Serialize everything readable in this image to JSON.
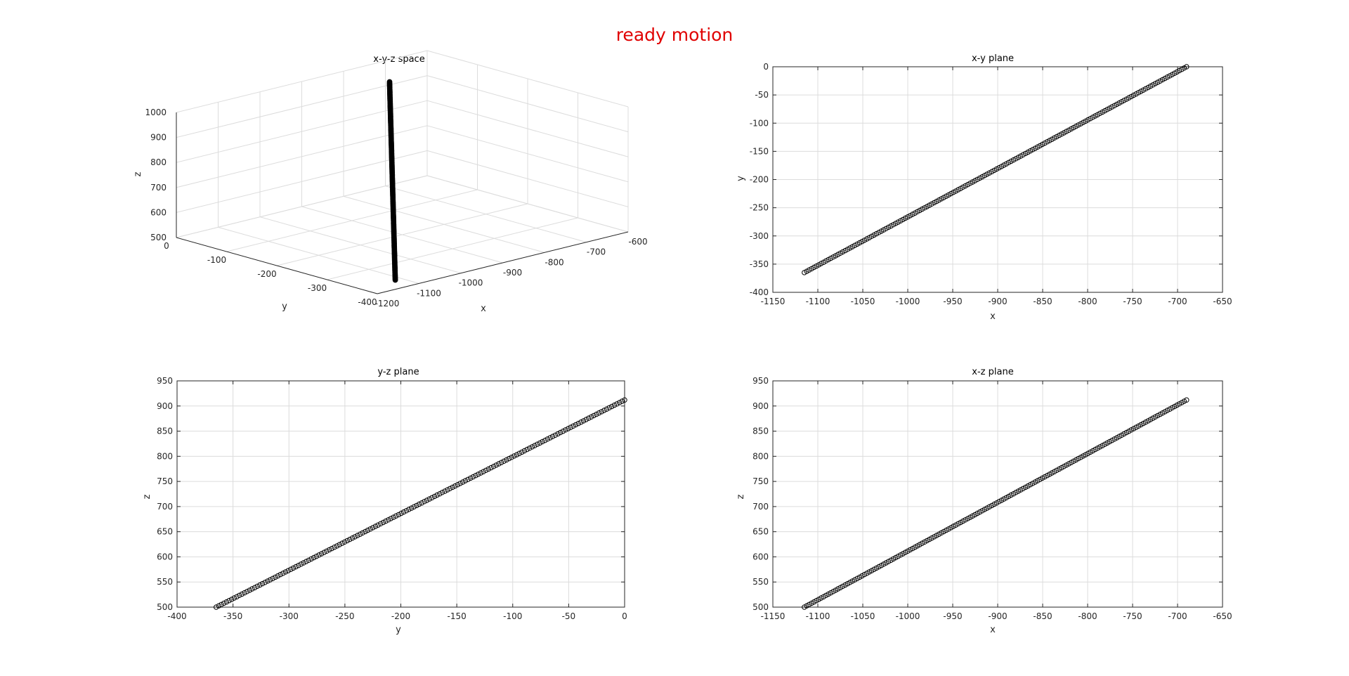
{
  "figure": {
    "suptitle": "ready motion",
    "suptitle_color": "#e00000",
    "line_color": "#000000"
  },
  "chart_data": [
    {
      "type": "scatter",
      "subtype": "3d",
      "title": "x-y-z space",
      "xlabel": "x",
      "ylabel": "y",
      "zlabel": "z",
      "xlim": [
        -1200,
        -600
      ],
      "ylim": [
        -400,
        0
      ],
      "zlim": [
        500,
        1000
      ],
      "xticks": [
        "-1200",
        "-1100",
        "-1000",
        "-900",
        "-800",
        "-700",
        "-600"
      ],
      "yticks": [
        "0",
        "-100",
        "-200",
        "-300",
        "-400"
      ],
      "zticks": [
        "500",
        "600",
        "700",
        "800",
        "900",
        "1000"
      ],
      "grid": true,
      "series": [
        {
          "x": [
            -1115,
            -690
          ],
          "y": [
            -365,
            0
          ],
          "z": [
            500,
            912
          ]
        }
      ]
    },
    {
      "type": "scatter",
      "title": "x-y plane",
      "xlabel": "x",
      "ylabel": "y",
      "xlim": [
        -1150,
        -650
      ],
      "ylim": [
        -400,
        0
      ],
      "xticks": [
        "-1150",
        "-1100",
        "-1050",
        "-1000",
        "-950",
        "-900",
        "-850",
        "-800",
        "-750",
        "-700",
        "-650"
      ],
      "yticks": [
        "0",
        "-50",
        "-100",
        "-150",
        "-200",
        "-250",
        "-300",
        "-350",
        "-400"
      ],
      "grid": true,
      "series": [
        {
          "x": [
            -1115,
            -690
          ],
          "y": [
            -365,
            0
          ]
        }
      ]
    },
    {
      "type": "scatter",
      "title": "y-z plane",
      "xlabel": "y",
      "ylabel": "z",
      "xlim": [
        -400,
        0
      ],
      "ylim": [
        500,
        950
      ],
      "xticks": [
        "-400",
        "-350",
        "-300",
        "-250",
        "-200",
        "-150",
        "-100",
        "-50",
        "0"
      ],
      "yticks": [
        "950",
        "900",
        "850",
        "800",
        "750",
        "700",
        "650",
        "600",
        "550",
        "500"
      ],
      "grid": true,
      "series": [
        {
          "x": [
            -365,
            0
          ],
          "y": [
            500,
            912
          ]
        }
      ]
    },
    {
      "type": "scatter",
      "title": "x-z plane",
      "xlabel": "x",
      "ylabel": "z",
      "xlim": [
        -1150,
        -650
      ],
      "ylim": [
        500,
        950
      ],
      "xticks": [
        "-1150",
        "-1100",
        "-1050",
        "-1000",
        "-950",
        "-900",
        "-850",
        "-800",
        "-750",
        "-700",
        "-650"
      ],
      "yticks": [
        "950",
        "900",
        "850",
        "800",
        "750",
        "700",
        "650",
        "600",
        "550",
        "500"
      ],
      "grid": true,
      "series": [
        {
          "x": [
            -1115,
            -690
          ],
          "y": [
            500,
            912
          ]
        }
      ]
    }
  ]
}
